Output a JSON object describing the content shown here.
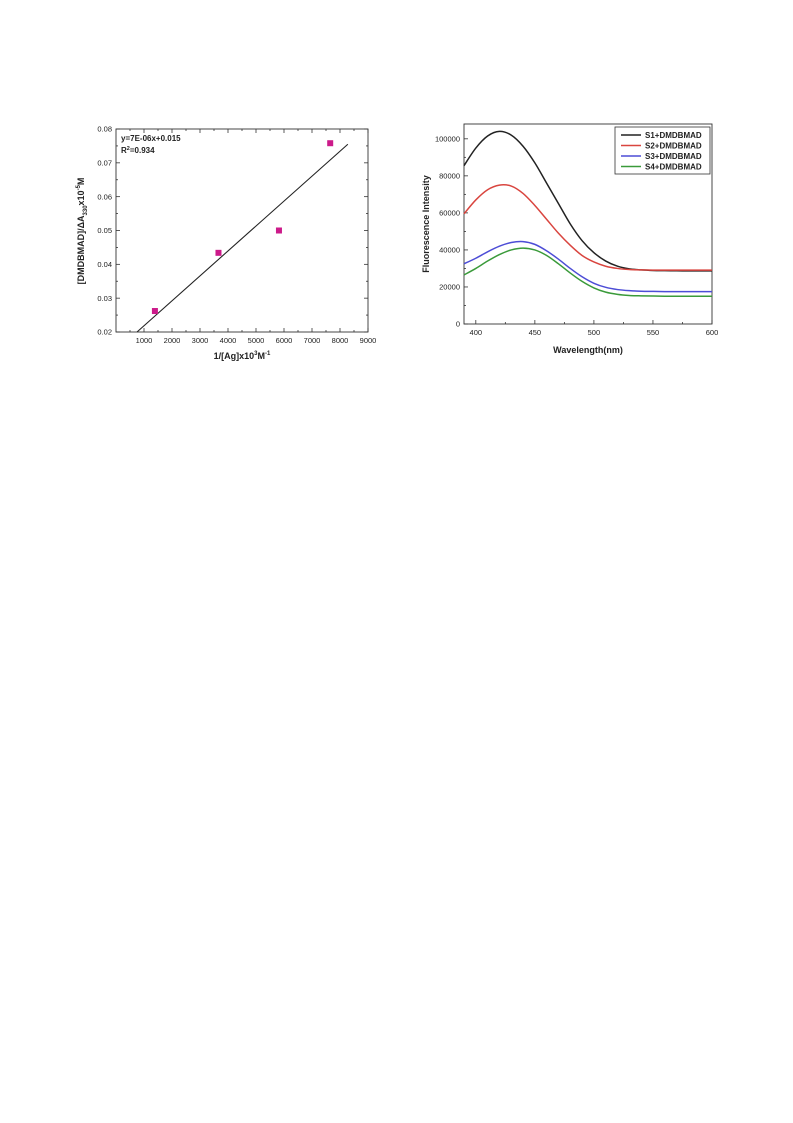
{
  "chart_data": [
    {
      "type": "scatter",
      "xlabel_main": "1/[Ag]x10",
      "xlabel_sup1": "3",
      "xlabel_mid": "M",
      "xlabel_sup2": "-1",
      "ylabel_main": "[DMDBMAD]/ΔA",
      "ylabel_sub": "330",
      "ylabel_mid": "x10",
      "ylabel_sup": "-5",
      "ylabel_end": "M",
      "xlim": [
        0,
        9000
      ],
      "ylim": [
        0.02,
        0.08
      ],
      "xticks": [
        "1000",
        "2000",
        "3000",
        "4000",
        "5000",
        "6000",
        "7000",
        "8000",
        "9000"
      ],
      "yticks": [
        "0.02",
        "0.03",
        "0.04",
        "0.05",
        "0.06",
        "0.07",
        "0.08"
      ],
      "points": [
        {
          "x": 1390,
          "y": 0.0262
        },
        {
          "x": 3660,
          "y": 0.0434
        },
        {
          "x": 5820,
          "y": 0.05
        },
        {
          "x": 7650,
          "y": 0.0758
        }
      ],
      "fit_line": {
        "x": [
          750,
          8280
        ],
        "y": [
          0.02,
          0.0755
        ]
      },
      "annotation_equation": "y=7E-06x+0.015",
      "annotation_r2_prefix": "R",
      "annotation_r2_sup": "2",
      "annotation_r2_value": "=0.934",
      "colors": {
        "points": "#cc1a8a",
        "line": "#222222"
      }
    },
    {
      "type": "line",
      "xlabel": "Wavelength(nm)",
      "ylabel": "Fluorescence Intensity",
      "xlim": [
        390,
        600
      ],
      "ylim": [
        0,
        108000
      ],
      "xticks": [
        "400",
        "450",
        "500",
        "550",
        "600"
      ],
      "yticks": [
        "0",
        "20000",
        "40000",
        "60000",
        "80000",
        "100000"
      ],
      "legend_position": "top-right",
      "series": [
        {
          "name": "S1+DMDBMAD",
          "color": "#222222",
          "x": [
            390,
            400,
            410,
            420,
            430,
            440,
            450,
            460,
            470,
            480,
            490,
            500,
            510,
            520,
            530,
            540,
            550,
            560,
            570,
            580,
            590,
            600
          ],
          "y": [
            85500,
            95000,
            101500,
            104000,
            102000,
            96000,
            87000,
            76000,
            65000,
            54000,
            45000,
            38500,
            34000,
            31200,
            29800,
            29200,
            28900,
            28800,
            28750,
            28700,
            28700,
            28700
          ]
        },
        {
          "name": "S2+DMDBMAD",
          "color": "#d9453f",
          "x": [
            390,
            400,
            410,
            420,
            430,
            440,
            450,
            460,
            470,
            480,
            490,
            500,
            510,
            520,
            530,
            540,
            550,
            560,
            570,
            580,
            590,
            600
          ],
          "y": [
            59500,
            67000,
            72500,
            75000,
            74500,
            70500,
            64000,
            56500,
            49000,
            42500,
            37000,
            33500,
            31200,
            30000,
            29400,
            29200,
            29100,
            29100,
            29100,
            29100,
            29100,
            29100
          ]
        },
        {
          "name": "S3+DMDBMAD",
          "color": "#4d4dd6",
          "x": [
            390,
            400,
            410,
            420,
            430,
            440,
            450,
            460,
            470,
            480,
            490,
            500,
            510,
            520,
            530,
            540,
            550,
            560,
            570,
            580,
            590,
            600
          ],
          "y": [
            32500,
            35500,
            39000,
            42000,
            44000,
            44500,
            43000,
            39500,
            35000,
            30000,
            25500,
            22000,
            19800,
            18600,
            18000,
            17700,
            17600,
            17500,
            17500,
            17500,
            17500,
            17500
          ]
        },
        {
          "name": "S4+DMDBMAD",
          "color": "#3a9a3a",
          "x": [
            390,
            400,
            410,
            420,
            430,
            440,
            450,
            460,
            470,
            480,
            490,
            500,
            510,
            520,
            530,
            540,
            550,
            560,
            570,
            580,
            590,
            600
          ],
          "y": [
            26500,
            30000,
            34000,
            37500,
            40000,
            41000,
            40000,
            37000,
            32500,
            27500,
            23000,
            19500,
            17200,
            16000,
            15400,
            15200,
            15100,
            15000,
            15000,
            15000,
            15000,
            15000
          ]
        }
      ]
    }
  ]
}
